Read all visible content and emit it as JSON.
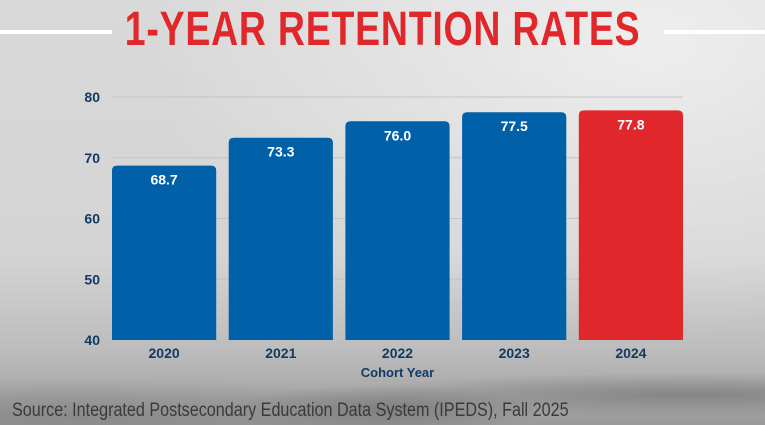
{
  "title": "1-YEAR RETENTION RATES",
  "source": "Source: Integrated Postsecondary Education Data System (IPEDS), Fall 2025",
  "chart_data": {
    "type": "bar",
    "title": "1-YEAR RETENTION RATES",
    "xlabel": "Cohort Year",
    "ylabel": "",
    "categories": [
      "2020",
      "2021",
      "2022",
      "2023",
      "2024"
    ],
    "values": [
      68.7,
      73.3,
      76.0,
      77.5,
      77.8
    ],
    "data_labels": [
      "68.7",
      "73.3",
      "76.0",
      "77.5",
      "77.8"
    ],
    "ylim": [
      40,
      80
    ],
    "yticks": [
      40,
      50,
      60,
      70,
      80
    ],
    "grid": true,
    "colors": {
      "default": "#0060a8",
      "highlight": "#e0282c",
      "highlight_category": "2024",
      "axis_text": "#123a63"
    }
  }
}
